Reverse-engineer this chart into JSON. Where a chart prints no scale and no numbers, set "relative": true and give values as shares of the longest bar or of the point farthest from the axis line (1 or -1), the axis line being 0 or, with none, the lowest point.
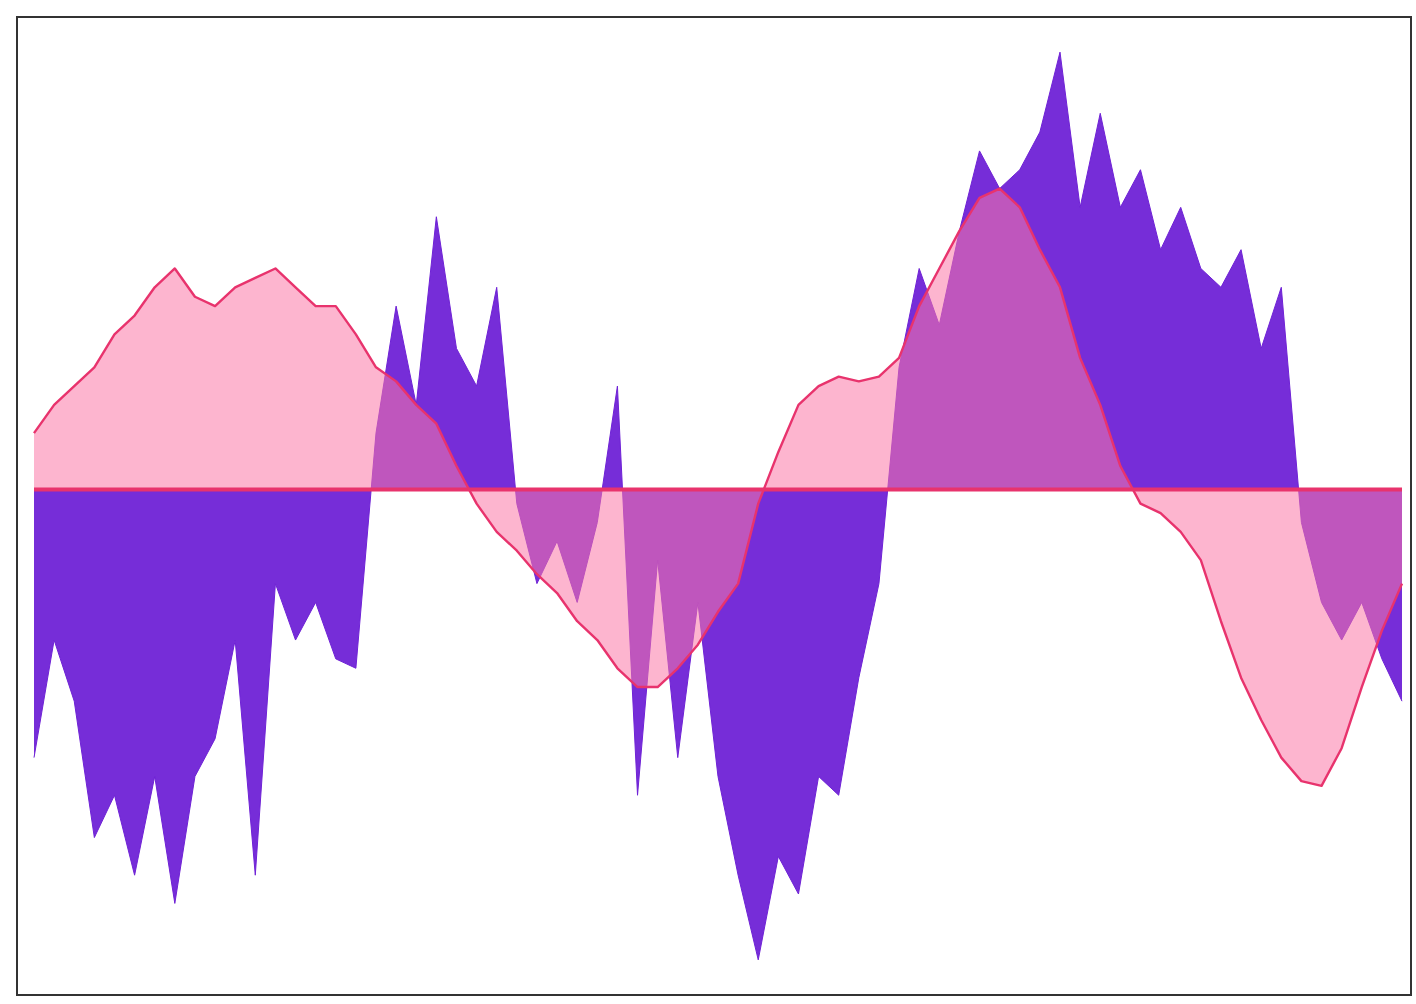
{
  "chart_data": {
    "type": "area",
    "relative": true,
    "ref_lines": [
      {
        "axis": "y",
        "value": 0,
        "color": "#e8336d"
      }
    ],
    "legend": false,
    "grid": false,
    "categories": [
      null,
      null,
      null,
      null,
      null,
      null,
      null,
      null,
      null,
      null,
      null,
      null,
      null,
      null,
      null,
      null,
      null,
      null,
      null,
      null,
      null,
      null,
      null,
      null,
      null,
      null,
      null,
      null,
      null,
      null,
      null,
      null,
      null,
      null,
      null,
      null,
      null,
      null,
      null,
      null,
      null,
      null,
      null,
      null,
      null,
      null,
      null,
      null,
      null,
      null,
      null,
      null,
      null,
      null,
      null,
      null,
      null,
      null,
      null,
      null,
      null,
      null,
      null,
      null,
      null,
      null,
      null,
      null,
      null
    ],
    "series": [
      {
        "color": "#6f22d6",
        "values": [
          -0.57,
          -0.32,
          -0.45,
          -0.74,
          -0.65,
          -0.82,
          -0.61,
          -0.88,
          -0.61,
          -0.53,
          -0.32,
          -0.82,
          -0.2,
          -0.32,
          -0.24,
          -0.36,
          -0.38,
          0.12,
          0.39,
          0.18,
          0.58,
          0.3,
          0.22,
          0.43,
          -0.03,
          -0.2,
          -0.11,
          -0.24,
          -0.07,
          0.22,
          -0.65,
          -0.15,
          -0.57,
          -0.24,
          -0.61,
          -0.82,
          -1,
          -0.78,
          -0.86,
          -0.61,
          -0.65,
          -0.4,
          -0.2,
          0.26,
          0.47,
          0.35,
          0.55,
          0.72,
          0.64,
          0.68,
          0.76,
          0.93,
          0.6,
          0.8,
          0.6,
          0.68,
          0.51,
          0.6,
          0.47,
          0.43,
          0.51,
          0.3,
          0.43,
          -0.07,
          -0.24,
          -0.32,
          -0.24,
          -0.36,
          -0.45
        ]
      },
      {
        "color": "#e8336d",
        "values": [
          0.12,
          0.18,
          0.22,
          0.26,
          0.33,
          0.37,
          0.43,
          0.47,
          0.41,
          0.39,
          0.43,
          0.45,
          0.47,
          0.43,
          0.39,
          0.39,
          0.33,
          0.26,
          0.23,
          0.18,
          0.14,
          0.05,
          -0.03,
          -0.09,
          -0.13,
          -0.18,
          -0.22,
          -0.28,
          -0.32,
          -0.38,
          -0.42,
          -0.42,
          -0.38,
          -0.33,
          -0.26,
          -0.2,
          -0.03,
          0.08,
          0.18,
          0.22,
          0.24,
          0.23,
          0.24,
          0.28,
          0.39,
          0.47,
          0.55,
          0.62,
          0.64,
          0.6,
          0.51,
          0.43,
          0.28,
          0.18,
          0.05,
          -0.03,
          -0.05,
          -0.09,
          -0.15,
          -0.28,
          -0.4,
          -0.49,
          -0.57,
          -0.62,
          -0.63,
          -0.55,
          -0.42,
          -0.3,
          -0.2
        ]
      }
    ]
  }
}
